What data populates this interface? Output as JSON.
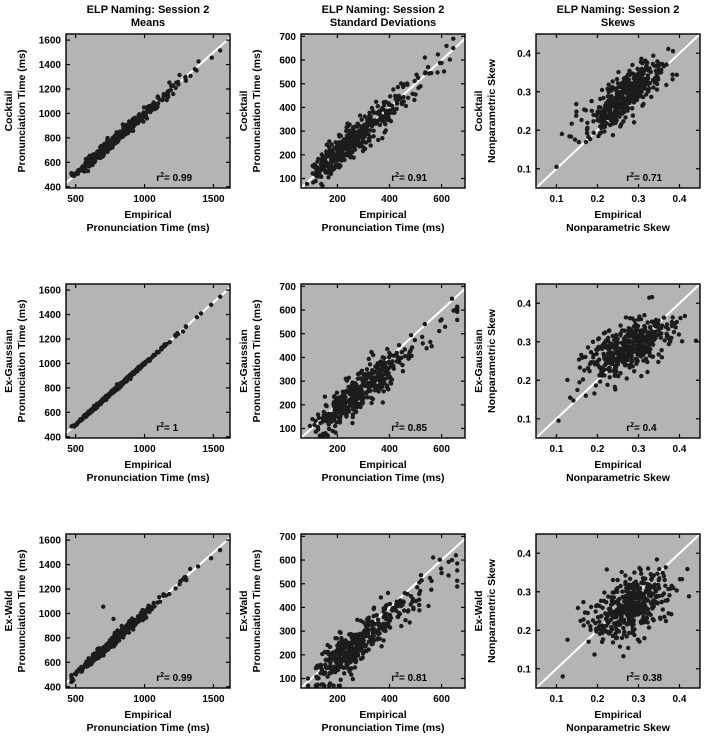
{
  "figure": {
    "bg": "#ffffff",
    "panel_bg": "#b4b4b4",
    "dot_color": "#1c1c1c",
    "identity_line_color": "#ffffff",
    "axis_color": "#000000",
    "grid": false,
    "legend": false
  },
  "chart_data": [
    {
      "id": "cocktail-means",
      "type": "scatter",
      "title": [
        "ELP Naming: Session 2",
        "Means"
      ],
      "ylabel": [
        "Cocktail",
        "Pronunciation Time (ms)"
      ],
      "xlabel": [
        "Empirical",
        "Pronunciation Time (ms)"
      ],
      "xlim": [
        430,
        1620
      ],
      "ylim": [
        390,
        1650
      ],
      "xticks": [
        500,
        1000,
        1500
      ],
      "yticks": [
        400,
        600,
        800,
        1000,
        1200,
        1400,
        1600
      ],
      "r2": "0.99",
      "identity_line": true,
      "points_model": {
        "seed": 11,
        "n": 420,
        "x_dist": "lognormal",
        "x_mu": 6.659,
        "x_sigma": 0.2,
        "x_clip": [
          470,
          1570
        ],
        "slope": 0.99,
        "intercept": 8,
        "noise": 22,
        "y_clip": [
          440,
          1600
        ]
      },
      "outliers": [
        [
          1225,
          1210
        ],
        [
          1300,
          1268
        ],
        [
          1378,
          1352
        ],
        [
          1487,
          1456
        ],
        [
          1549,
          1516
        ],
        [
          1160,
          1150
        ]
      ]
    },
    {
      "id": "cocktail-sd",
      "type": "scatter",
      "title": [
        "ELP Naming: Session 2",
        "Standard Deviations"
      ],
      "ylabel": [
        "Cocktail",
        "Pronunciation Time (ms)"
      ],
      "xlabel": [
        "Empirical",
        "Pronunciation Time (ms)"
      ],
      "xlim": [
        60,
        690
      ],
      "ylim": [
        60,
        710
      ],
      "xticks": [
        200,
        400,
        600
      ],
      "yticks": [
        100,
        200,
        300,
        400,
        500,
        600,
        700
      ],
      "r2": "0.91",
      "identity_line": true,
      "points_model": {
        "seed": 12,
        "n": 420,
        "x_dist": "lognormal",
        "x_mu": 5.541,
        "x_sigma": 0.36,
        "x_clip": [
          78,
          645
        ],
        "slope": 0.95,
        "intercept": 15,
        "noise": 33,
        "y_clip": [
          70,
          690
        ]
      },
      "outliers": [
        [
          600,
          588
        ],
        [
          632,
          602
        ],
        [
          560,
          545
        ]
      ]
    },
    {
      "id": "cocktail-skews",
      "type": "scatter",
      "title": [
        "ELP Naming: Session 2",
        "Skews"
      ],
      "ylabel": [
        "Cocktail",
        "Nonparametric Skew"
      ],
      "xlabel": [
        "Empirical",
        "Nonparametric Skew"
      ],
      "xlim": [
        0.05,
        0.45
      ],
      "ylim": [
        0.05,
        0.45
      ],
      "xticks": [
        0.1,
        0.2,
        0.3,
        0.4
      ],
      "yticks": [
        0.1,
        0.2,
        0.3,
        0.4
      ],
      "r2": "0.71",
      "identity_line": true,
      "points_model": {
        "seed": 13,
        "n": 420,
        "x_dist": "normal",
        "x_mu": 0.26,
        "x_sigma": 0.048,
        "x_clip": [
          0.09,
          0.43
        ],
        "slope": 0.8,
        "intercept": 0.075,
        "noise": 0.028,
        "y_clip": [
          0.07,
          0.44
        ]
      },
      "outliers": [
        [
          0.1,
          0.105
        ]
      ]
    },
    {
      "id": "exgaussian-means",
      "type": "scatter",
      "title": [],
      "ylabel": [
        "Ex-Gaussian",
        "Pronunciation Time (ms)"
      ],
      "xlabel": [
        "Empirical",
        "Pronunciation Time (ms)"
      ],
      "xlim": [
        430,
        1620
      ],
      "ylim": [
        390,
        1650
      ],
      "xticks": [
        500,
        1000,
        1500
      ],
      "yticks": [
        400,
        600,
        800,
        1000,
        1200,
        1400,
        1600
      ],
      "r2": "1",
      "identity_line": true,
      "points_model": {
        "seed": 21,
        "n": 420,
        "x_dist": "lognormal",
        "x_mu": 6.659,
        "x_sigma": 0.2,
        "x_clip": [
          470,
          1570
        ],
        "slope": 1.0,
        "intercept": 0,
        "noise": 7,
        "y_clip": [
          440,
          1600
        ]
      },
      "outliers": [
        [
          1225,
          1222
        ],
        [
          1300,
          1298
        ],
        [
          1380,
          1378
        ],
        [
          1483,
          1480
        ],
        [
          1549,
          1546
        ],
        [
          1160,
          1158
        ]
      ]
    },
    {
      "id": "exgaussian-sd",
      "type": "scatter",
      "title": [],
      "ylabel": [
        "Ex-Gaussian",
        "Pronunciation Time (ms)"
      ],
      "xlabel": [
        "Empirical",
        "Pronunciation Time (ms)"
      ],
      "xlim": [
        60,
        690
      ],
      "ylim": [
        60,
        710
      ],
      "xticks": [
        200,
        400,
        600
      ],
      "yticks": [
        100,
        200,
        300,
        400,
        500,
        600,
        700
      ],
      "r2": "0.85",
      "identity_line": true,
      "points_model": {
        "seed": 22,
        "n": 420,
        "x_dist": "lognormal",
        "x_mu": 5.635,
        "x_sigma": 0.35,
        "x_clip": [
          80,
          660
        ],
        "slope": 0.9,
        "intercept": 0,
        "noise": 38,
        "y_clip": [
          70,
          690
        ]
      },
      "outliers": [
        [
          640,
          648
        ],
        [
          600,
          560
        ],
        [
          652,
          600
        ]
      ]
    },
    {
      "id": "exgaussian-skews",
      "type": "scatter",
      "title": [],
      "ylabel": [
        "Ex-Gaussian",
        "Nonparametric Skew"
      ],
      "xlabel": [
        "Empirical",
        "Nonparametric Skew"
      ],
      "xlim": [
        0.05,
        0.45
      ],
      "ylim": [
        0.05,
        0.45
      ],
      "xticks": [
        0.1,
        0.2,
        0.3,
        0.4
      ],
      "yticks": [
        0.1,
        0.2,
        0.3,
        0.4
      ],
      "r2": "0.4",
      "identity_line": true,
      "points_model": {
        "seed": 23,
        "n": 420,
        "x_dist": "normal",
        "x_mu": 0.27,
        "x_sigma": 0.05,
        "x_clip": [
          0.1,
          0.44
        ],
        "slope": 0.45,
        "intercept": 0.158,
        "noise": 0.033,
        "y_clip": [
          0.07,
          0.44
        ]
      },
      "outliers": [
        [
          0.105,
          0.095
        ]
      ]
    },
    {
      "id": "exwald-means",
      "type": "scatter",
      "title": [],
      "ylabel": [
        "Ex-Wald",
        "Pronunciation Time (ms)"
      ],
      "xlabel": [
        "Empirical",
        "Pronunciation Time (ms)"
      ],
      "xlim": [
        430,
        1620
      ],
      "ylim": [
        390,
        1650
      ],
      "xticks": [
        500,
        1000,
        1500
      ],
      "yticks": [
        400,
        600,
        800,
        1000,
        1200,
        1400,
        1600
      ],
      "r2": "0.99",
      "identity_line": true,
      "points_model": {
        "seed": 31,
        "n": 420,
        "x_dist": "lognormal",
        "x_mu": 6.659,
        "x_sigma": 0.2,
        "x_clip": [
          470,
          1570
        ],
        "slope": 0.995,
        "intercept": 5,
        "noise": 20,
        "y_clip": [
          440,
          1600
        ]
      },
      "outliers": [
        [
          700,
          1055
        ],
        [
          775,
          955
        ],
        [
          1225,
          1205
        ],
        [
          1302,
          1272
        ],
        [
          1483,
          1452
        ],
        [
          1548,
          1518
        ],
        [
          1155,
          1148
        ]
      ]
    },
    {
      "id": "exwald-sd",
      "type": "scatter",
      "title": [],
      "ylabel": [
        "Ex-Wald",
        "Pronunciation Time (ms)"
      ],
      "xlabel": [
        "Empirical",
        "Pronunciation Time (ms)"
      ],
      "xlim": [
        60,
        690
      ],
      "ylim": [
        60,
        710
      ],
      "xticks": [
        200,
        400,
        600
      ],
      "yticks": [
        100,
        200,
        300,
        400,
        500,
        600,
        700
      ],
      "r2": "0.81",
      "identity_line": true,
      "points_model": {
        "seed": 32,
        "n": 420,
        "x_dist": "lognormal",
        "x_mu": 5.598,
        "x_sigma": 0.36,
        "x_clip": [
          80,
          660
        ],
        "slope": 0.88,
        "intercept": 5,
        "noise": 42,
        "y_clip": [
          70,
          690
        ]
      },
      "outliers": [
        [
          640,
          600
        ],
        [
          655,
          620
        ],
        [
          600,
          545
        ]
      ]
    },
    {
      "id": "exwald-skews",
      "type": "scatter",
      "title": [],
      "ylabel": [
        "Ex-Wald",
        "Nonparametric Skew"
      ],
      "xlabel": [
        "Empirical",
        "Nonparametric Skew"
      ],
      "xlim": [
        0.05,
        0.45
      ],
      "ylim": [
        0.05,
        0.45
      ],
      "xticks": [
        0.1,
        0.2,
        0.3,
        0.4
      ],
      "yticks": [
        0.1,
        0.2,
        0.3,
        0.4
      ],
      "r2": "0.38",
      "identity_line": true,
      "points_model": {
        "seed": 33,
        "n": 420,
        "x_dist": "normal",
        "x_mu": 0.28,
        "x_sigma": 0.05,
        "x_clip": [
          0.1,
          0.44
        ],
        "slope": 0.4,
        "intercept": 0.148,
        "noise": 0.038,
        "y_clip": [
          0.07,
          0.44
        ]
      },
      "outliers": [
        [
          0.115,
          0.08
        ]
      ]
    }
  ]
}
